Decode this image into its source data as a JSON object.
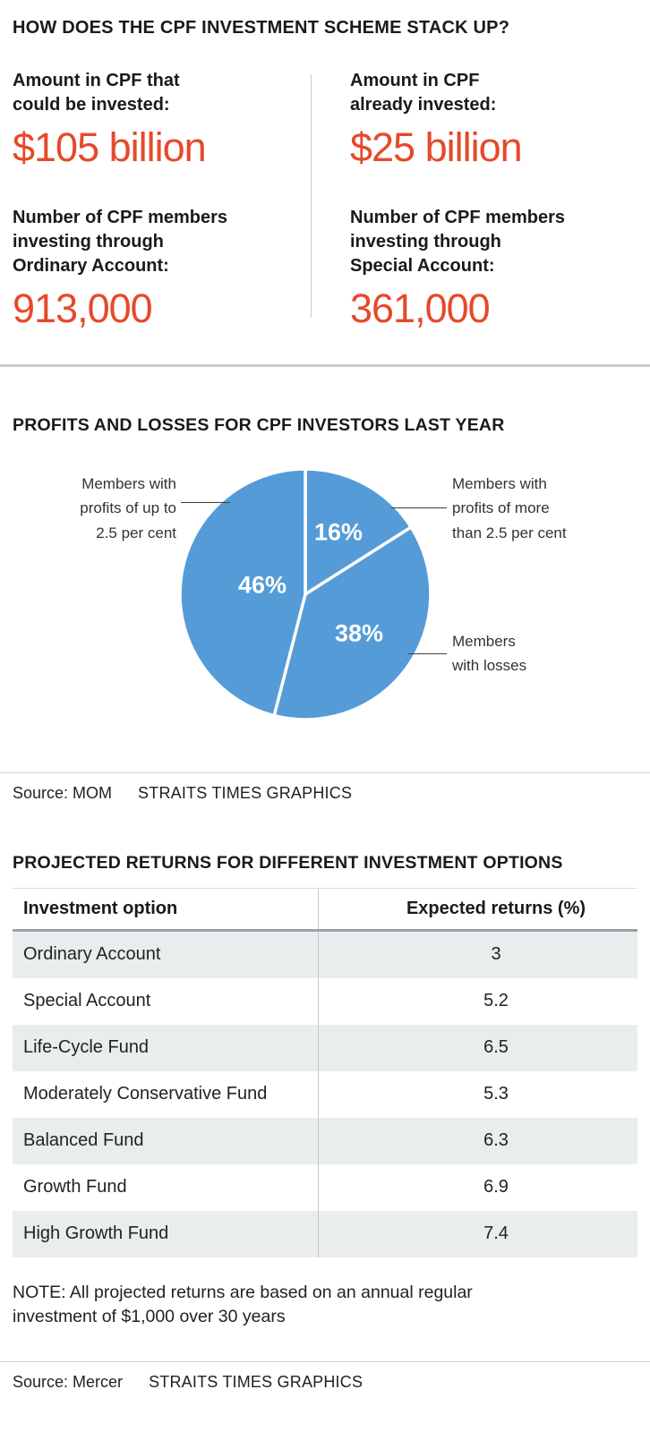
{
  "colors": {
    "accent": "#e6492a",
    "pie": "#559bd8",
    "row_alt": "#e9edee"
  },
  "title": "HOW DOES THE CPF INVESTMENT SCHEME STACK UP?",
  "stats": [
    {
      "label": "Amount in CPF that\ncould be invested:",
      "value": "$105 billion"
    },
    {
      "label": "Amount in CPF\nalready invested:",
      "value": "$25 billion"
    },
    {
      "label": "Number of CPF members\ninvesting through\nOrdinary Account:",
      "value": "913,000"
    },
    {
      "label": "Number of CPF members\ninvesting through\nSpecial Account:",
      "value": "361,000"
    }
  ],
  "pie_section": {
    "heading": "PROFITS AND LOSSES FOR CPF INVESTORS LAST YEAR",
    "source": {
      "label": "Source: MOM",
      "credit": "STRAITS TIMES GRAPHICS"
    }
  },
  "table_section": {
    "heading": "PROJECTED RETURNS FOR DIFFERENT INVESTMENT OPTIONS",
    "note": "NOTE: All projected returns are based on an annual regular\ninvestment of $1,000 over 30 years",
    "source": {
      "label": "Source: Mercer",
      "credit": "STRAITS TIMES GRAPHICS"
    }
  },
  "chart_data": [
    {
      "type": "pie",
      "title": "PROFITS AND LOSSES FOR CPF INVESTORS LAST YEAR",
      "color": "#559bd8",
      "legend_position": "callouts",
      "slices": [
        {
          "label": "Members with\nprofits of more\nthan 2.5 per cent",
          "value": 16,
          "display": "16%"
        },
        {
          "label": "Members\nwith losses",
          "value": 38,
          "display": "38%"
        },
        {
          "label": "Members with\nprofits of up to\n2.5 per cent",
          "value": 46,
          "display": "46%"
        }
      ]
    },
    {
      "type": "table",
      "title": "PROJECTED RETURNS FOR DIFFERENT INVESTMENT OPTIONS",
      "columns": [
        "Investment option",
        "Expected returns (%)"
      ],
      "rows": [
        [
          "Ordinary Account",
          "3"
        ],
        [
          "Special Account",
          "5.2"
        ],
        [
          "Life-Cycle Fund",
          "6.5"
        ],
        [
          "Moderately Conservative Fund",
          "5.3"
        ],
        [
          "Balanced Fund",
          "6.3"
        ],
        [
          "Growth Fund",
          "6.9"
        ],
        [
          "High Growth Fund",
          "7.4"
        ]
      ],
      "note": "NOTE: All projected returns are based on an annual regular investment of $1,000 over 30 years"
    }
  ]
}
